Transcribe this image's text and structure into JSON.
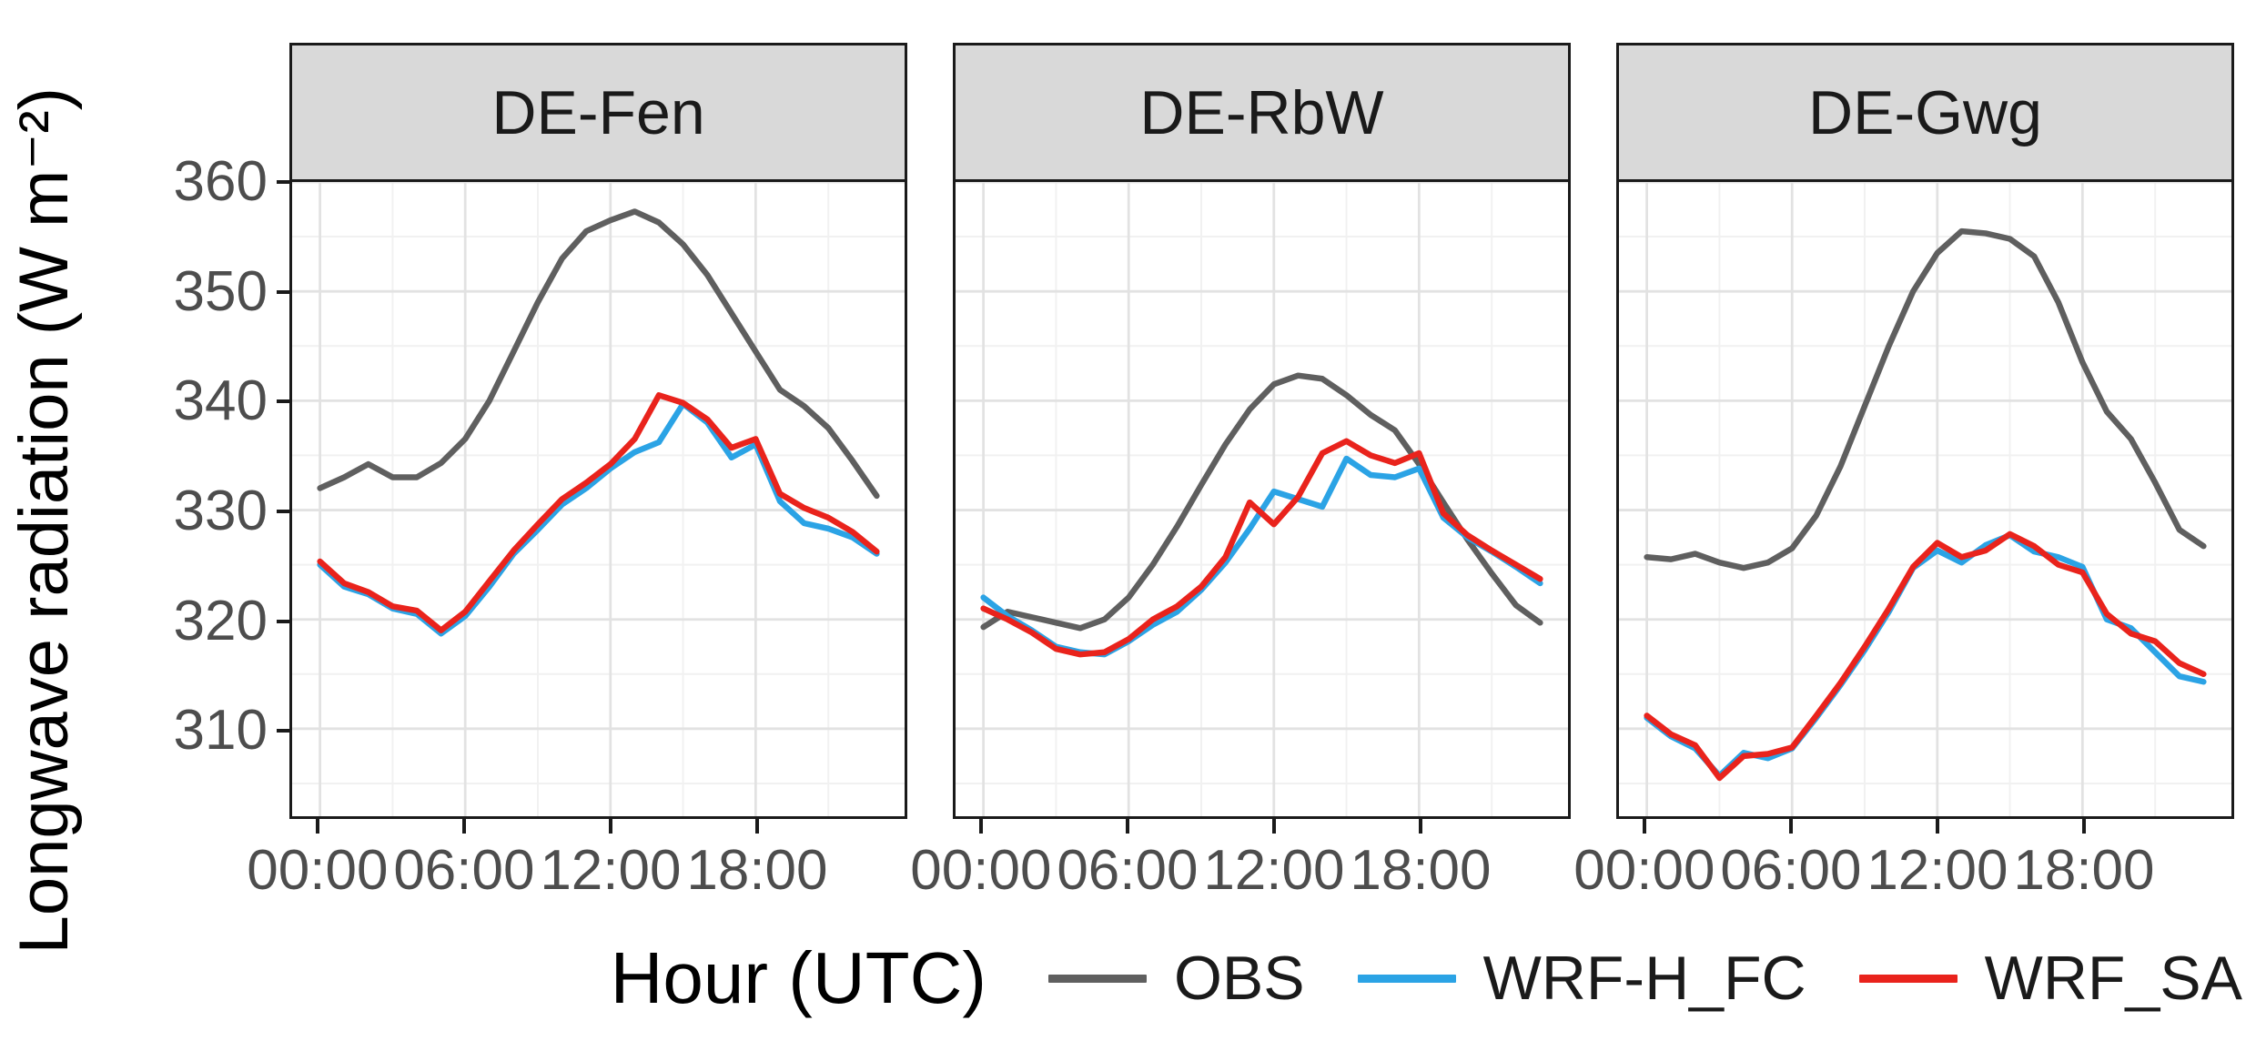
{
  "colors": {
    "strip_bg": "#D9D9D9",
    "panel_border": "#1A1A1A",
    "grid_major": "#E2E2E2",
    "grid_minor": "#F1F1F1",
    "axis_text": "#4D4D4D",
    "obs": "#5F5F5F",
    "wrf_h_fc": "#2BA3E5",
    "wrf_sa": "#E9231C"
  },
  "chart_data": {
    "type": "line",
    "title": "",
    "xlabel": "Hour (UTC)",
    "ylabel": "Longwave radiation (W m⁻²)",
    "legend_position": "bottom",
    "grid": true,
    "x": [
      0,
      1,
      2,
      3,
      4,
      5,
      6,
      7,
      8,
      9,
      10,
      11,
      12,
      13,
      14,
      15,
      16,
      17,
      18,
      19,
      20,
      21,
      22,
      23
    ],
    "x_domain": [
      -1.15,
      24.15
    ],
    "y_domain": [
      302,
      360
    ],
    "x_major_ticks": [
      0,
      6,
      12,
      18
    ],
    "x_tick_labels": [
      "00:00",
      "06:00",
      "12:00",
      "18:00"
    ],
    "x_minor_ticks": [
      3,
      9,
      15,
      21
    ],
    "y_major_ticks": [
      310,
      320,
      330,
      340,
      350,
      360
    ],
    "y_tick_labels": [
      "310",
      "320",
      "330",
      "340",
      "350",
      "360"
    ],
    "y_minor_ticks": [
      305,
      315,
      325,
      335,
      345,
      355
    ],
    "series": [
      {
        "name": "OBS",
        "color": "#5F5F5F"
      },
      {
        "name": "WRF-H_FC",
        "color": "#2BA3E5"
      },
      {
        "name": "WRF_SA",
        "color": "#E9231C"
      }
    ],
    "panels": [
      {
        "name": "DE-Fen",
        "values": {
          "OBS": [
            332.0,
            333.0,
            334.2,
            333.0,
            333.0,
            334.3,
            336.5,
            340.0,
            344.5,
            349.0,
            353.0,
            355.5,
            356.5,
            357.3,
            356.3,
            354.3,
            351.5,
            348.0,
            344.5,
            341.0,
            339.5,
            337.5,
            334.5,
            331.3
          ],
          "WRF-H_FC": [
            325.0,
            323.0,
            322.3,
            321.0,
            320.5,
            318.7,
            320.3,
            323.0,
            326.0,
            328.2,
            330.5,
            332.0,
            333.8,
            335.3,
            336.2,
            339.7,
            338.0,
            334.8,
            336.0,
            330.8,
            328.8,
            328.3,
            327.5,
            326.0
          ],
          "WRF_SA": [
            325.3,
            323.3,
            322.5,
            321.2,
            320.8,
            319.0,
            320.7,
            323.5,
            326.3,
            328.7,
            331.0,
            332.5,
            334.2,
            336.5,
            340.5,
            339.8,
            338.3,
            335.7,
            336.5,
            331.5,
            330.2,
            329.3,
            328.0,
            326.2
          ]
        }
      },
      {
        "name": "DE-RbW",
        "values": {
          "OBS": [
            319.3,
            320.7,
            320.2,
            319.7,
            319.2,
            320.0,
            322.0,
            325.0,
            328.5,
            332.3,
            336.0,
            339.2,
            341.5,
            342.3,
            342.0,
            340.5,
            338.7,
            337.3,
            334.2,
            330.7,
            327.3,
            324.2,
            321.3,
            319.7
          ],
          "WRF-H_FC": [
            322.0,
            320.3,
            319.0,
            317.5,
            317.0,
            316.8,
            318.0,
            319.5,
            320.7,
            322.7,
            325.2,
            328.3,
            331.7,
            331.0,
            330.3,
            334.7,
            333.2,
            333.0,
            333.8,
            329.3,
            327.5,
            326.2,
            324.8,
            323.3
          ],
          "WRF_SA": [
            321.0,
            320.0,
            318.8,
            317.3,
            316.8,
            317.0,
            318.2,
            320.0,
            321.2,
            323.0,
            325.7,
            330.7,
            328.7,
            331.2,
            335.2,
            336.3,
            335.0,
            334.3,
            335.2,
            329.7,
            327.7,
            326.3,
            325.0,
            323.7
          ]
        }
      },
      {
        "name": "DE-Gwg",
        "values": {
          "OBS": [
            325.7,
            325.5,
            326.0,
            325.2,
            324.7,
            325.2,
            326.5,
            329.5,
            334.0,
            339.5,
            345.0,
            350.0,
            353.5,
            355.5,
            355.3,
            354.8,
            353.2,
            349.0,
            343.5,
            339.0,
            336.5,
            332.5,
            328.2,
            326.7
          ],
          "WRF-H_FC": [
            311.0,
            309.3,
            308.2,
            305.7,
            307.8,
            307.3,
            308.2,
            311.0,
            314.0,
            317.2,
            320.7,
            324.7,
            326.3,
            325.2,
            326.8,
            327.7,
            326.2,
            325.7,
            324.8,
            320.0,
            319.2,
            317.0,
            314.8,
            314.3
          ],
          "WRF_SA": [
            311.2,
            309.5,
            308.5,
            305.5,
            307.5,
            307.7,
            308.3,
            311.2,
            314.2,
            317.5,
            321.0,
            324.8,
            327.0,
            325.7,
            326.3,
            327.8,
            326.7,
            325.0,
            324.3,
            320.5,
            318.7,
            318.0,
            316.0,
            315.0
          ]
        }
      }
    ]
  }
}
